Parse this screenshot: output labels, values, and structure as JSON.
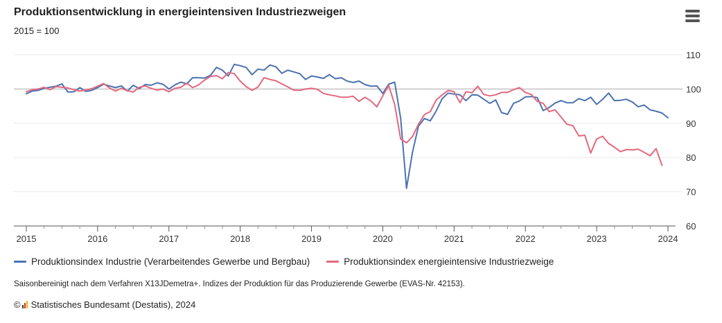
{
  "header": {
    "title": "Produktionsentwicklung in energieintensiven Industriezweigen",
    "subtitle": "2015 = 100"
  },
  "menu": {
    "icon": "hamburger-menu-icon"
  },
  "colors": {
    "industrie": "#4a72b0",
    "energie": "#e5677d",
    "baseline": "#c8c8c8",
    "grid": "#e8e8e8"
  },
  "legend": {
    "items": [
      {
        "label": "Produktionsindex Industrie (Verarbeitendes Gewerbe und Bergbau)",
        "color": "#4a72b0"
      },
      {
        "label": "Produktionsindex energieintensive Industriezweige",
        "color": "#e5677d"
      }
    ]
  },
  "footer": {
    "note": "Saisonbereinigt nach dem Verfahren X13JDemetra+. Indizes der Produktion für das Produzierende Gewerbe (EVAS-Nr. 42153).",
    "copyright_symbol": "©",
    "credit": "Statistisches Bundesamt (Destatis), 2024",
    "logo_icon": "destatis-logo-icon"
  },
  "chart_data": {
    "type": "line",
    "title": "Produktionsentwicklung in energieintensiven Industriezweigen",
    "subtitle": "2015 = 100",
    "x_ticks": [
      "2015",
      "2016",
      "2017",
      "2018",
      "2019",
      "2020",
      "2021",
      "2022",
      "2023",
      "2024"
    ],
    "y_ticks": [
      60,
      70,
      80,
      90,
      100,
      110
    ],
    "ylim": [
      60,
      110
    ],
    "xlim": [
      "2015-01",
      "2024-01"
    ],
    "y_axis_side": "right",
    "grid": true,
    "reference_line": 100,
    "legend_position": "bottom",
    "start": "2015-01",
    "frequency": "monthly",
    "series": [
      {
        "name": "Produktionsindex Industrie (Verarbeitendes Gewerbe und Bergbau)",
        "color": "#4a72b0",
        "values": [
          98.6,
          99.4,
          99.6,
          100.2,
          100.5,
          100.8,
          101.5,
          99.1,
          99.2,
          100.4,
          99.3,
          99.6,
          100.4,
          101.4,
          100.9,
          100.4,
          100.9,
          99.4,
          101.1,
          100.1,
          101.3,
          101.1,
          101.8,
          101.4,
          100.0,
          101.2,
          102.0,
          101.5,
          103.3,
          103.3,
          103.2,
          104.0,
          106.3,
          105.5,
          103.8,
          107.2,
          106.8,
          106.3,
          104.2,
          105.8,
          105.5,
          107.0,
          106.5,
          104.6,
          105.5,
          105.0,
          104.5,
          102.8,
          103.8,
          103.5,
          103.1,
          104.2,
          103.0,
          103.3,
          102.3,
          101.9,
          102.3,
          101.3,
          100.8,
          100.9,
          98.7,
          101.4,
          102.0,
          91.5,
          71.0,
          81.5,
          89.1,
          91.4,
          90.7,
          93.6,
          97.2,
          98.8,
          98.5,
          98.3,
          96.6,
          98.3,
          98.2,
          97.0,
          95.8,
          96.8,
          93.1,
          92.6,
          95.8,
          96.5,
          97.7,
          97.8,
          97.5,
          93.7,
          94.6,
          95.9,
          96.6,
          96.0,
          96.0,
          97.2,
          96.6,
          97.6,
          95.5,
          97.0,
          98.8,
          96.6,
          96.7,
          97.0,
          96.2,
          94.8,
          95.3,
          93.9,
          93.5,
          93.0,
          91.6
        ]
      },
      {
        "name": "Produktionsindex energieintensive Industriezweige",
        "color": "#e5677d",
        "values": [
          99.2,
          99.8,
          100.0,
          100.5,
          99.8,
          100.7,
          100.5,
          100.3,
          99.8,
          99.4,
          99.7,
          100.1,
          100.8,
          101.6,
          100.3,
          99.4,
          100.2,
          99.5,
          99.1,
          100.5,
          100.9,
          100.2,
          99.7,
          100.0,
          99.2,
          100.2,
          100.5,
          101.7,
          100.4,
          101.2,
          102.6,
          103.7,
          103.9,
          103.0,
          104.8,
          104.5,
          102.3,
          100.7,
          99.6,
          100.6,
          103.3,
          102.8,
          102.4,
          101.5,
          100.6,
          99.7,
          99.6,
          100.0,
          100.2,
          99.9,
          98.7,
          98.3,
          98.0,
          97.6,
          97.6,
          97.9,
          96.4,
          97.6,
          96.5,
          94.8,
          98.0,
          101.0,
          95.5,
          85.4,
          84.3,
          86.1,
          89.7,
          92.5,
          93.4,
          96.8,
          98.3,
          99.6,
          99.2,
          96.0,
          99.2,
          98.9,
          100.8,
          98.4,
          98.0,
          98.3,
          99.0,
          99.0,
          99.8,
          100.4,
          99.0,
          98.4,
          96.4,
          95.8,
          93.4,
          93.9,
          91.8,
          89.7,
          89.3,
          86.3,
          86.5,
          81.3,
          85.4,
          86.2,
          84.1,
          83.0,
          81.7,
          82.3,
          82.2,
          82.4,
          81.5,
          80.5,
          82.6,
          77.7
        ]
      }
    ]
  }
}
